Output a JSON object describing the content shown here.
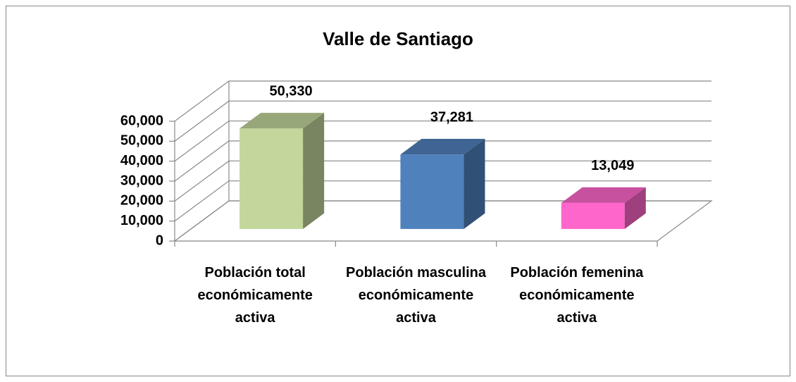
{
  "chart_data": {
    "type": "bar3d",
    "title": "Valle de Santiago",
    "categories": [
      "Población total económicamente activa",
      "Población masculina económicamente activa",
      "Población femenina económicamente activa"
    ],
    "values": [
      50330,
      37281,
      13049
    ],
    "value_labels": [
      "50,330",
      "37,281",
      "13,049"
    ],
    "colors": [
      "#c3d69b",
      "#4f81bd",
      "#ff66cc"
    ],
    "ylim": [
      0,
      60000
    ],
    "yticks": [
      0,
      {
        "value": 10000,
        "label": "10,000"
      },
      {
        "value": 20000,
        "label": "20,000"
      },
      {
        "value": 30000,
        "label": "30,000"
      },
      {
        "value": 40000,
        "label": "40,000"
      },
      {
        "value": 50000,
        "label": "50,000"
      },
      {
        "value": 60000,
        "label": "60,000"
      }
    ],
    "grid": true
  }
}
